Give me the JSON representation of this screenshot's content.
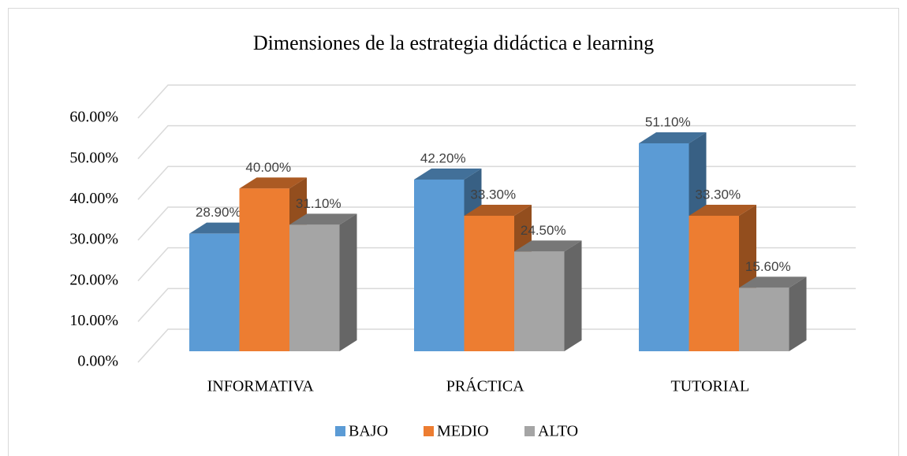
{
  "chart_data": {
    "type": "bar3d",
    "title": "Dimensiones de la estrategia didáctica e learning",
    "categories": [
      "INFORMATIVA",
      "PRÁCTICA",
      "TUTORIAL"
    ],
    "series": [
      {
        "name": "BAJO",
        "color": "#5b9bd5",
        "values": [
          28.9,
          42.2,
          51.1
        ],
        "value_labels": [
          "28.90%",
          "42.20%",
          "51.10%"
        ]
      },
      {
        "name": "MEDIO",
        "color": "#ed7d31",
        "values": [
          40.0,
          33.3,
          33.3
        ],
        "value_labels": [
          "40.00%",
          "33.30%",
          "33.30%"
        ]
      },
      {
        "name": "ALTO",
        "color": "#a5a5a5",
        "values": [
          31.1,
          24.5,
          15.6
        ],
        "value_labels": [
          "31.10%",
          "24.50%",
          "15.60%"
        ]
      }
    ],
    "ylim": [
      0,
      60
    ],
    "yticks": [
      {
        "value": 0,
        "label": "0.00%"
      },
      {
        "value": 10,
        "label": "10.00%"
      },
      {
        "value": 20,
        "label": "20.00%"
      },
      {
        "value": 30,
        "label": "30.00%"
      },
      {
        "value": 40,
        "label": "40.00%"
      },
      {
        "value": 50,
        "label": "50.00%"
      },
      {
        "value": 60,
        "label": "60.00%"
      }
    ],
    "grid": true,
    "legend": "bottom"
  }
}
